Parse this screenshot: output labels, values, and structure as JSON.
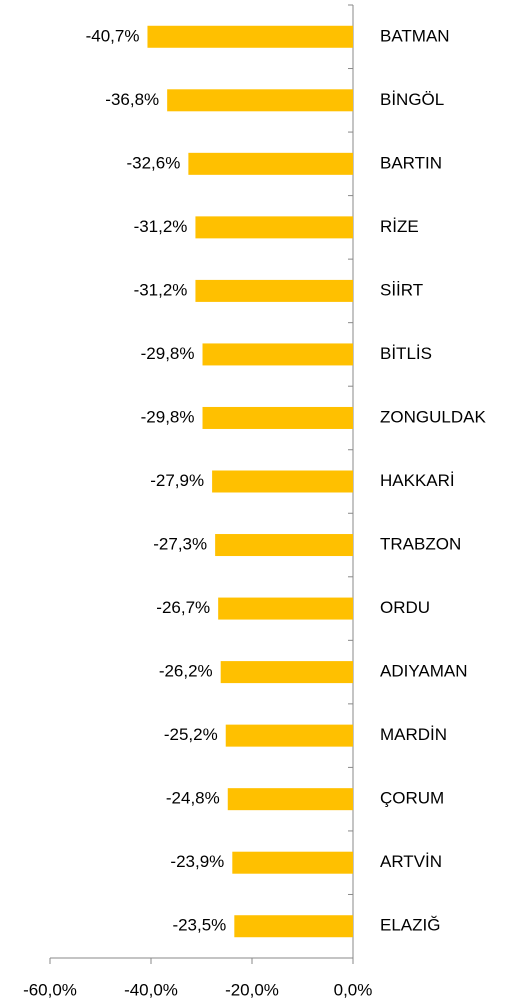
{
  "chart_data": {
    "type": "bar",
    "orientation": "horizontal",
    "categories": [
      "BATMAN",
      "BİNGÖL",
      "BARTIN",
      "RİZE",
      "SİİRT",
      "BİTLİS",
      "ZONGULDAK",
      "HAKKARİ",
      "TRABZON",
      "ORDU",
      "ADIYAMAN",
      "MARDİN",
      "ÇORUM",
      "ARTVİN",
      "ELAZIĞ"
    ],
    "values": [
      -40.7,
      -36.8,
      -32.6,
      -31.2,
      -31.2,
      -29.8,
      -29.8,
      -27.9,
      -27.3,
      -26.7,
      -26.2,
      -25.2,
      -24.8,
      -23.9,
      -23.5
    ],
    "value_labels": [
      "-40,7%",
      "-36,8%",
      "-32,6%",
      "-31,2%",
      "-31,2%",
      "-29,8%",
      "-29,8%",
      "-27,9%",
      "-27,3%",
      "-26,7%",
      "-26,2%",
      "-25,2%",
      "-24,8%",
      "-23,9%",
      "-23,5%"
    ],
    "color": "#FFC000",
    "xlim": [
      -60,
      0
    ],
    "xticks": [
      {
        "value": -60,
        "label": "-60,0%"
      },
      {
        "value": -40,
        "label": "-40,0%"
      },
      {
        "value": -20,
        "label": "-20,0%"
      },
      {
        "value": 0,
        "label": "0,0%"
      }
    ]
  }
}
